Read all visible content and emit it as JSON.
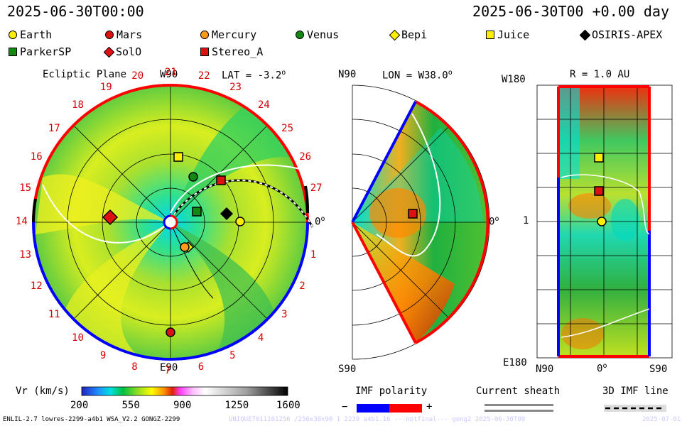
{
  "header": {
    "left_time": "2025-06-30T00:00",
    "right_time": "2025-06-30T00 +0.00 day"
  },
  "legend": [
    {
      "name": "Earth",
      "shape": "circle",
      "color": "#ffee00"
    },
    {
      "name": "Mars",
      "shape": "circle",
      "color": "#dd1111"
    },
    {
      "name": "Mercury",
      "shape": "circle",
      "color": "#ff9a1a"
    },
    {
      "name": "Venus",
      "shape": "circle",
      "color": "#118a11"
    },
    {
      "name": "Bepi",
      "shape": "diamond",
      "color": "#ffee00"
    },
    {
      "name": "Juice",
      "shape": "square",
      "color": "#ffee00"
    },
    {
      "name": "OSIRIS-APEX",
      "shape": "diamond",
      "color": "#000000"
    },
    {
      "name": "ParkerSP",
      "shape": "square",
      "color": "#118a11"
    },
    {
      "name": "SolO",
      "shape": "diamond",
      "color": "#dd1111"
    },
    {
      "name": "Stereo_A",
      "shape": "square",
      "color": "#dd1111"
    }
  ],
  "panel1": {
    "title": "Ecliptic Plane",
    "top_label": "W90",
    "bottom_label": "E90",
    "right_label": "0",
    "lat_label": "LAT = -3.2",
    "carrington_ticks": [
      "1",
      "2",
      "3",
      "4",
      "5",
      "6",
      "7",
      "8",
      "9",
      "10",
      "11",
      "12",
      "13",
      "14",
      "15",
      "16",
      "17",
      "18",
      "19",
      "20",
      "21",
      "22",
      "23",
      "24",
      "25",
      "26",
      "27"
    ]
  },
  "panel2": {
    "top_label": "N90",
    "bottom_label": "S90",
    "right_label": "0",
    "lon_label": "LON = W38.0"
  },
  "panel3": {
    "r_label": "R = 1.0 AU",
    "top_left": "W180",
    "mid_left": "1",
    "bottom_left": "E180",
    "x_left": "N90",
    "x_mid": "0",
    "x_right": "S90"
  },
  "colorbar": {
    "title": "Vr (km/s)",
    "ticks": [
      "200",
      "550",
      "900",
      "1250",
      "1600"
    ]
  },
  "polarity": {
    "title": "IMF polarity",
    "minus": "−",
    "plus": "+",
    "neg_color": "#0000ff",
    "pos_color": "#ff0000"
  },
  "sheath": {
    "title": "Current sheath"
  },
  "imf_line": {
    "title": "3D IMF line"
  },
  "footer": {
    "model": "ENLIL-2.7 lowres-2299-a4b1 WSA_V2.2 GONGZ-2299",
    "run": "UNIQUE7011161256 /256x30x90 1 2239 a4b1.16 ---notfinal--- gong2 2025-06-30T00",
    "date": "2025-07-01"
  }
}
